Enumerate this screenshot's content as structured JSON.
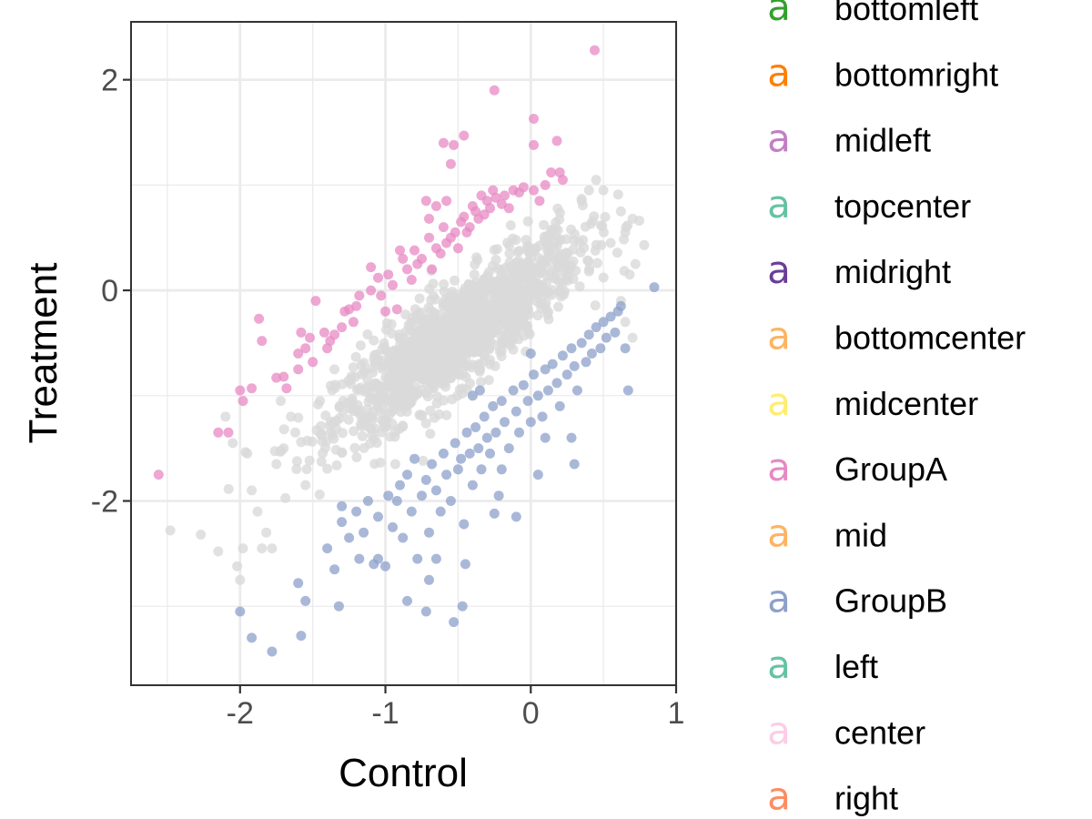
{
  "chart_data": {
    "type": "scatter",
    "xlabel": "Control",
    "ylabel": "Treatment",
    "xlim": [
      -2.75,
      1.0
    ],
    "ylim": [
      -3.75,
      2.55
    ],
    "xticks": [
      -2,
      -1,
      0,
      1
    ],
    "xtick_labels": [
      "-2",
      "-1",
      "0",
      "1"
    ],
    "yticks": [
      -2,
      0,
      2
    ],
    "ytick_labels": [
      "-2",
      "0",
      "2"
    ],
    "grid": true,
    "legend_position": "right",
    "legend": [
      {
        "label": "bottomleft",
        "key": "a",
        "color": "#33a02c"
      },
      {
        "label": "bottomright",
        "key": "a",
        "color": "#ff7f00"
      },
      {
        "label": "midleft",
        "key": "a",
        "color": "#c27fc4"
      },
      {
        "label": "topcenter",
        "key": "a",
        "color": "#66c2a5"
      },
      {
        "label": "midright",
        "key": "a",
        "color": "#6a3d9a"
      },
      {
        "label": "bottomcenter",
        "key": "a",
        "color": "#fdb462"
      },
      {
        "label": "midcenter",
        "key": "a",
        "color": "#ffed6f"
      },
      {
        "label": "GroupA",
        "key": "a",
        "color": "#e78ac3"
      },
      {
        "label": "mid",
        "key": "a",
        "color": "#fdb462"
      },
      {
        "label": "GroupB",
        "key": "a",
        "color": "#8da0cb"
      },
      {
        "label": "left",
        "key": "a",
        "color": "#66c2a5"
      },
      {
        "label": "center",
        "key": "a",
        "color": "#fccde5"
      },
      {
        "label": "right",
        "key": "a",
        "color": "#fc8d62"
      }
    ],
    "series": [
      {
        "name": "GroupA",
        "color": "#e78ac3",
        "points": [
          [
            -2.56,
            -1.75
          ],
          [
            -2.15,
            -1.35
          ],
          [
            -2.08,
            -1.35
          ],
          [
            -1.98,
            -1.05
          ],
          [
            -2.0,
            -0.95
          ],
          [
            -1.92,
            -0.93
          ],
          [
            -1.85,
            -0.48
          ],
          [
            -1.87,
            -0.27
          ],
          [
            -1.75,
            -0.83
          ],
          [
            -1.7,
            -0.82
          ],
          [
            -1.68,
            -0.93
          ],
          [
            -1.6,
            -0.75
          ],
          [
            -1.6,
            -0.6
          ],
          [
            -1.58,
            -0.4
          ],
          [
            -1.55,
            -0.55
          ],
          [
            -1.52,
            -0.45
          ],
          [
            -1.5,
            -0.68
          ],
          [
            -1.48,
            -0.1
          ],
          [
            -1.42,
            -0.4
          ],
          [
            -1.38,
            -0.48
          ],
          [
            -1.35,
            -0.42
          ],
          [
            -1.3,
            -0.35
          ],
          [
            -1.28,
            -0.2
          ],
          [
            -1.22,
            -0.3
          ],
          [
            -1.2,
            -0.15
          ],
          [
            -1.18,
            -0.05
          ],
          [
            -1.1,
            0.0
          ],
          [
            -1.05,
            0.12
          ],
          [
            -1.03,
            -0.05
          ],
          [
            -1.0,
            -0.2
          ],
          [
            -0.98,
            0.15
          ],
          [
            -0.95,
            0.05
          ],
          [
            -0.92,
            -0.18
          ],
          [
            -0.88,
            0.3
          ],
          [
            -0.85,
            0.2
          ],
          [
            -0.82,
            0.1
          ],
          [
            -0.8,
            0.38
          ],
          [
            -0.78,
            0.25
          ],
          [
            -0.75,
            0.3
          ],
          [
            -0.72,
            0.85
          ],
          [
            -0.7,
            0.5
          ],
          [
            -0.68,
            0.2
          ],
          [
            -0.65,
            0.4
          ],
          [
            -0.62,
            0.35
          ],
          [
            -0.6,
            0.6
          ],
          [
            -0.58,
            0.45
          ],
          [
            -0.55,
            0.5
          ],
          [
            -0.52,
            0.55
          ],
          [
            -0.5,
            0.4
          ],
          [
            -0.48,
            0.65
          ],
          [
            -0.46,
            0.7
          ],
          [
            -0.44,
            0.55
          ],
          [
            -0.42,
            0.6
          ],
          [
            -0.4,
            0.8
          ],
          [
            -0.38,
            0.75
          ],
          [
            -0.36,
            0.68
          ],
          [
            -0.34,
            0.9
          ],
          [
            -0.32,
            0.72
          ],
          [
            -0.3,
            0.85
          ],
          [
            -0.28,
            0.78
          ],
          [
            -0.26,
            0.95
          ],
          [
            -0.24,
            0.88
          ],
          [
            -0.2,
            0.82
          ],
          [
            -0.18,
            0.9
          ],
          [
            -0.15,
            0.78
          ],
          [
            -0.12,
            0.95
          ],
          [
            -0.08,
            0.93
          ],
          [
            -0.05,
            0.98
          ],
          [
            0.02,
            0.95
          ],
          [
            0.06,
            0.85
          ],
          [
            0.1,
            1.0
          ],
          [
            0.14,
            1.12
          ],
          [
            0.2,
            1.12
          ],
          [
            0.22,
            1.05
          ],
          [
            -0.6,
            1.4
          ],
          [
            -0.55,
            1.2
          ],
          [
            -0.53,
            1.38
          ],
          [
            -0.46,
            1.47
          ],
          [
            -0.25,
            1.9
          ],
          [
            0.02,
            1.63
          ],
          [
            0.02,
            1.38
          ],
          [
            0.18,
            1.42
          ],
          [
            0.44,
            2.28
          ],
          [
            -0.65,
            0.8
          ],
          [
            -0.7,
            0.68
          ],
          [
            -0.9,
            0.38
          ],
          [
            -1.1,
            0.22
          ],
          [
            -1.25,
            -0.18
          ],
          [
            -1.4,
            -0.55
          ],
          [
            -0.58,
            0.85
          ]
        ]
      },
      {
        "name": "GroupB",
        "color": "#8da0cb",
        "points": [
          [
            -2.0,
            -3.05
          ],
          [
            -1.92,
            -3.3
          ],
          [
            -1.78,
            -3.43
          ],
          [
            -1.6,
            -2.78
          ],
          [
            -1.58,
            -3.28
          ],
          [
            -1.55,
            -2.95
          ],
          [
            -1.4,
            -2.45
          ],
          [
            -1.35,
            -2.65
          ],
          [
            -1.32,
            -3.0
          ],
          [
            -1.3,
            -2.2
          ],
          [
            -1.25,
            -2.35
          ],
          [
            -1.2,
            -2.1
          ],
          [
            -1.18,
            -2.55
          ],
          [
            -1.15,
            -2.3
          ],
          [
            -1.12,
            -2.0
          ],
          [
            -1.08,
            -2.6
          ],
          [
            -1.05,
            -2.15
          ],
          [
            -1.0,
            -2.62
          ],
          [
            -0.98,
            -1.95
          ],
          [
            -0.95,
            -2.25
          ],
          [
            -0.92,
            -2.0
          ],
          [
            -0.9,
            -1.85
          ],
          [
            -0.88,
            -2.35
          ],
          [
            -0.85,
            -1.75
          ],
          [
            -0.82,
            -2.1
          ],
          [
            -0.8,
            -1.6
          ],
          [
            -0.78,
            -2.55
          ],
          [
            -0.75,
            -1.95
          ],
          [
            -0.72,
            -1.8
          ],
          [
            -0.7,
            -2.3
          ],
          [
            -0.68,
            -1.65
          ],
          [
            -0.65,
            -1.9
          ],
          [
            -0.62,
            -2.1
          ],
          [
            -0.6,
            -1.55
          ],
          [
            -0.58,
            -1.75
          ],
          [
            -0.55,
            -2.0
          ],
          [
            -0.52,
            -1.45
          ],
          [
            -0.5,
            -1.7
          ],
          [
            -0.48,
            -1.6
          ],
          [
            -0.46,
            -2.22
          ],
          [
            -0.44,
            -1.35
          ],
          [
            -0.42,
            -1.55
          ],
          [
            -0.4,
            -1.85
          ],
          [
            -0.38,
            -1.3
          ],
          [
            -0.36,
            -1.5
          ],
          [
            -0.34,
            -1.7
          ],
          [
            -0.32,
            -1.2
          ],
          [
            -0.3,
            -1.4
          ],
          [
            -0.28,
            -1.55
          ],
          [
            -0.26,
            -1.1
          ],
          [
            -0.24,
            -1.35
          ],
          [
            -0.22,
            -1.95
          ],
          [
            -0.2,
            -1.05
          ],
          [
            -0.18,
            -1.25
          ],
          [
            -0.15,
            -1.5
          ],
          [
            -0.12,
            -0.95
          ],
          [
            -0.1,
            -1.15
          ],
          [
            -0.08,
            -1.35
          ],
          [
            -0.05,
            -0.9
          ],
          [
            -0.02,
            -1.05
          ],
          [
            0.0,
            -1.25
          ],
          [
            0.02,
            -0.8
          ],
          [
            0.05,
            -1.0
          ],
          [
            0.08,
            -1.2
          ],
          [
            0.1,
            -0.75
          ],
          [
            0.12,
            -0.95
          ],
          [
            0.15,
            -0.7
          ],
          [
            0.18,
            -0.88
          ],
          [
            0.2,
            -1.1
          ],
          [
            0.22,
            -0.62
          ],
          [
            0.25,
            -0.8
          ],
          [
            0.28,
            -0.55
          ],
          [
            0.3,
            -0.72
          ],
          [
            0.32,
            -0.95
          ],
          [
            0.35,
            -0.5
          ],
          [
            0.38,
            -0.68
          ],
          [
            0.4,
            -0.42
          ],
          [
            0.42,
            -0.6
          ],
          [
            0.45,
            -0.35
          ],
          [
            0.48,
            -0.55
          ],
          [
            0.5,
            -0.3
          ],
          [
            0.52,
            -0.45
          ],
          [
            0.55,
            -0.25
          ],
          [
            0.58,
            -0.4
          ],
          [
            0.6,
            -0.2
          ],
          [
            0.62,
            -0.15
          ],
          [
            0.65,
            -0.55
          ],
          [
            0.67,
            -0.95
          ],
          [
            0.85,
            0.03
          ],
          [
            0.28,
            -1.4
          ],
          [
            0.3,
            -1.65
          ],
          [
            0.1,
            -1.4
          ],
          [
            0.05,
            -1.75
          ],
          [
            -0.1,
            -2.15
          ],
          [
            -0.2,
            -1.7
          ],
          [
            -0.25,
            -2.12
          ],
          [
            -0.45,
            -2.6
          ],
          [
            -0.47,
            -3.0
          ],
          [
            -0.53,
            -3.15
          ],
          [
            -0.65,
            -2.55
          ],
          [
            -0.7,
            -2.75
          ],
          [
            -0.72,
            -3.05
          ],
          [
            -0.85,
            -2.95
          ],
          [
            -1.05,
            -2.55
          ],
          [
            -1.3,
            -2.05
          ],
          [
            -0.4,
            -1.0
          ],
          [
            -0.35,
            -0.95
          ],
          [
            0.0,
            -0.6
          ]
        ]
      },
      {
        "name": "",
        "color": "#d9d9d9",
        "generated_count": 1400,
        "points": [
          [
            -2.48,
            -2.28
          ],
          [
            -2.27,
            -2.32
          ],
          [
            -2.15,
            -2.48
          ],
          [
            -2.02,
            -2.62
          ],
          [
            -2.0,
            -2.75
          ],
          [
            -1.98,
            -2.45
          ],
          [
            -1.95,
            -1.55
          ],
          [
            -1.92,
            -1.9
          ],
          [
            -1.88,
            -2.1
          ],
          [
            -1.85,
            -2.45
          ],
          [
            -1.82,
            -2.3
          ],
          [
            -1.78,
            -2.45
          ],
          [
            -1.75,
            -1.65
          ],
          [
            -1.7,
            -1.5
          ],
          [
            -1.65,
            -1.2
          ],
          [
            -1.62,
            -1.35
          ],
          [
            -1.55,
            -1.85
          ],
          [
            -1.45,
            -1.05
          ],
          [
            -1.35,
            -0.75
          ],
          [
            -2.05,
            -1.45
          ],
          [
            -2.1,
            -1.2
          ],
          [
            -1.72,
            -1.05
          ],
          [
            0.45,
            1.05
          ],
          [
            0.5,
            0.95
          ],
          [
            0.62,
            0.75
          ],
          [
            0.65,
            0.55
          ],
          [
            0.7,
            0.68
          ],
          [
            0.78,
            0.43
          ],
          [
            0.72,
            0.25
          ],
          [
            0.68,
            0.15
          ],
          [
            0.62,
            -0.1
          ],
          [
            0.7,
            -0.45
          ],
          [
            0.65,
            -0.3
          ],
          [
            0.55,
            0.45
          ],
          [
            0.4,
            0.95
          ],
          [
            0.35,
            0.85
          ]
        ]
      }
    ]
  }
}
